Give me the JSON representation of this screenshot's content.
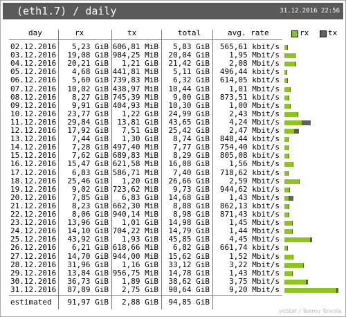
{
  "header": {
    "title": "(eth1.7) / daily",
    "timestamp": "31.12.2016 22:56"
  },
  "columns": {
    "day": "day",
    "rx": "rx",
    "tx": "tx",
    "total": "total",
    "avg_rate": "avg. rate"
  },
  "legend": {
    "rx_label": "rx",
    "tx_label": "tx",
    "rx_color": "#8fc31f",
    "tx_color": "#606060"
  },
  "rows": [
    {
      "day": "02.12.2016",
      "rx": "5,23 GiB",
      "tx": "606,81 MiB",
      "total": "5,83 GiB",
      "rate": "565,61 kbit/s",
      "rx_gib": 5.23,
      "tx_gib": 0.59
    },
    {
      "day": "03.12.2016",
      "rx": "19,08 GiB",
      "tx": "984,25 MiB",
      "total": "20,04 GiB",
      "rate": "1,95 Mbit/s",
      "rx_gib": 19.08,
      "tx_gib": 0.96
    },
    {
      "day": "04.12.2016",
      "rx": "20,21 GiB",
      "tx": "1,21 GiB",
      "total": "21,42 GiB",
      "rate": "2,08 Mbit/s",
      "rx_gib": 20.21,
      "tx_gib": 1.21
    },
    {
      "day": "05.12.2016",
      "rx": "4,68 GiB",
      "tx": "441,81 MiB",
      "total": "5,11 GiB",
      "rate": "496,44 kbit/s",
      "rx_gib": 4.68,
      "tx_gib": 0.43
    },
    {
      "day": "06.12.2016",
      "rx": "5,60 GiB",
      "tx": "739,83 MiB",
      "total": "6,32 GiB",
      "rate": "614,05 kbit/s",
      "rx_gib": 5.6,
      "tx_gib": 0.72
    },
    {
      "day": "07.12.2016",
      "rx": "10,02 GiB",
      "tx": "438,97 MiB",
      "total": "10,44 GiB",
      "rate": "1,01 Mbit/s",
      "rx_gib": 10.02,
      "tx_gib": 0.43
    },
    {
      "day": "08.12.2016",
      "rx": "8,27 GiB",
      "tx": "745,39 MiB",
      "total": "9,00 GiB",
      "rate": "873,51 kbit/s",
      "rx_gib": 8.27,
      "tx_gib": 0.73
    },
    {
      "day": "09.12.2016",
      "rx": "9,91 GiB",
      "tx": "404,93 MiB",
      "total": "10,30 GiB",
      "rate": "1,00 Mbit/s",
      "rx_gib": 9.91,
      "tx_gib": 0.4
    },
    {
      "day": "10.12.2016",
      "rx": "23,77 GiB",
      "tx": "1,22 GiB",
      "total": "24,99 GiB",
      "rate": "2,43 Mbit/s",
      "rx_gib": 23.77,
      "tx_gib": 1.22
    },
    {
      "day": "11.12.2016",
      "rx": "29,84 GiB",
      "tx": "13,81 GiB",
      "total": "43,65 GiB",
      "rate": "4,24 Mbit/s",
      "rx_gib": 29.84,
      "tx_gib": 13.81
    },
    {
      "day": "12.12.2016",
      "rx": "17,92 GiB",
      "tx": "7,51 GiB",
      "total": "25,42 GiB",
      "rate": "2,47 Mbit/s",
      "rx_gib": 17.92,
      "tx_gib": 7.51
    },
    {
      "day": "13.12.2016",
      "rx": "7,44 GiB",
      "tx": "1,30 GiB",
      "total": "8,74 GiB",
      "rate": "848,44 kbit/s",
      "rx_gib": 7.44,
      "tx_gib": 1.3
    },
    {
      "day": "14.12.2016",
      "rx": "7,28 GiB",
      "tx": "497,40 MiB",
      "total": "7,77 GiB",
      "rate": "754,40 kbit/s",
      "rx_gib": 7.28,
      "tx_gib": 0.49
    },
    {
      "day": "15.12.2016",
      "rx": "7,62 GiB",
      "tx": "689,83 MiB",
      "total": "8,29 GiB",
      "rate": "805,08 kbit/s",
      "rx_gib": 7.62,
      "tx_gib": 0.67
    },
    {
      "day": "16.12.2016",
      "rx": "15,47 GiB",
      "tx": "621,58 MiB",
      "total": "16,08 GiB",
      "rate": "1,56 Mbit/s",
      "rx_gib": 15.47,
      "tx_gib": 0.61
    },
    {
      "day": "17.12.2016",
      "rx": "6,83 GiB",
      "tx": "586,71 MiB",
      "total": "7,40 GiB",
      "rate": "718,62 kbit/s",
      "rx_gib": 6.83,
      "tx_gib": 0.57
    },
    {
      "day": "18.12.2016",
      "rx": "25,46 GiB",
      "tx": "1,20 GiB",
      "total": "26,66 GiB",
      "rate": "2,59 Mbit/s",
      "rx_gib": 25.46,
      "tx_gib": 1.2
    },
    {
      "day": "19.12.2016",
      "rx": "9,02 GiB",
      "tx": "723,62 MiB",
      "total": "9,73 GiB",
      "rate": "944,62 kbit/s",
      "rx_gib": 9.02,
      "tx_gib": 0.71
    },
    {
      "day": "20.12.2016",
      "rx": "7,85 GiB",
      "tx": "6,83 GiB",
      "total": "14,68 GiB",
      "rate": "1,43 Mbit/s",
      "rx_gib": 7.85,
      "tx_gib": 6.83
    },
    {
      "day": "21.12.2016",
      "rx": "8,23 GiB",
      "tx": "662,30 MiB",
      "total": "8,88 GiB",
      "rate": "862,13 kbit/s",
      "rx_gib": 8.23,
      "tx_gib": 0.65
    },
    {
      "day": "22.12.2016",
      "rx": "8,06 GiB",
      "tx": "940,14 MiB",
      "total": "8,98 GiB",
      "rate": "871,43 kbit/s",
      "rx_gib": 8.06,
      "tx_gib": 0.92
    },
    {
      "day": "23.12.2016",
      "rx": "13,96 GiB",
      "tx": "1,01 GiB",
      "total": "14,98 GiB",
      "rate": "1,45 Mbit/s",
      "rx_gib": 13.96,
      "tx_gib": 1.01
    },
    {
      "day": "24.12.2016",
      "rx": "14,10 GiB",
      "tx": "704,22 MiB",
      "total": "14,79 GiB",
      "rate": "1,44 Mbit/s",
      "rx_gib": 14.1,
      "tx_gib": 0.69
    },
    {
      "day": "25.12.2016",
      "rx": "43,92 GiB",
      "tx": "1,93 GiB",
      "total": "45,85 GiB",
      "rate": "4,45 Mbit/s",
      "rx_gib": 43.92,
      "tx_gib": 1.93
    },
    {
      "day": "26.12.2016",
      "rx": "6,21 GiB",
      "tx": "618,66 MiB",
      "total": "6,82 GiB",
      "rate": "661,74 kbit/s",
      "rx_gib": 6.21,
      "tx_gib": 0.6
    },
    {
      "day": "27.12.2016",
      "rx": "14,70 GiB",
      "tx": "944,00 MiB",
      "total": "15,62 GiB",
      "rate": "1,52 Mbit/s",
      "rx_gib": 14.7,
      "tx_gib": 0.92
    },
    {
      "day": "28.12.2016",
      "rx": "31,96 GiB",
      "tx": "1,16 GiB",
      "total": "33,12 GiB",
      "rate": "3,22 Mbit/s",
      "rx_gib": 31.96,
      "tx_gib": 1.16
    },
    {
      "day": "29.12.2016",
      "rx": "13,84 GiB",
      "tx": "956,75 MiB",
      "total": "14,78 GiB",
      "rate": "1,43 Mbit/s",
      "rx_gib": 13.84,
      "tx_gib": 0.93
    },
    {
      "day": "30.12.2016",
      "rx": "36,73 GiB",
      "tx": "1,89 GiB",
      "total": "38,62 GiB",
      "rate": "3,75 Mbit/s",
      "rx_gib": 36.73,
      "tx_gib": 1.89
    },
    {
      "day": "31.12.2016",
      "rx": "87,89 GiB",
      "tx": "2,75 GiB",
      "total": "90,64 GiB",
      "rate": "9,20 Mbit/s",
      "rx_gib": 87.89,
      "tx_gib": 2.75
    }
  ],
  "estimated": {
    "label": "estimated",
    "rx": "91,97 GiB",
    "tx": "2,88 GiB",
    "total": "94,85 GiB"
  },
  "footer": "vnStat / Teemu Toivola"
}
